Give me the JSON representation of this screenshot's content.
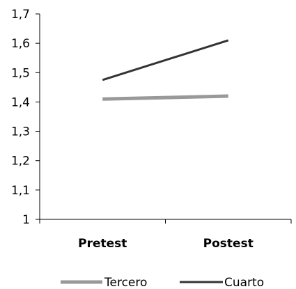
{
  "chart_data": {
    "type": "line",
    "categories": [
      "Pretest",
      "Postest"
    ],
    "series": [
      {
        "name": "Tercero",
        "values": [
          1.41,
          1.42
        ],
        "color": "#999999"
      },
      {
        "name": "Cuarto",
        "values": [
          1.475,
          1.61
        ],
        "color": "#333333"
      }
    ],
    "ylim": [
      1.0,
      1.7
    ],
    "y_ticks": [
      "1",
      "1,1",
      "1,2",
      "1,3",
      "1,4",
      "1,5",
      "1,6",
      "1,7"
    ],
    "y_tick_values": [
      1.0,
      1.1,
      1.2,
      1.3,
      1.4,
      1.5,
      1.6,
      1.7
    ],
    "grid": false,
    "legend_position": "bottom",
    "xlabel": "",
    "ylabel": "",
    "title": ""
  }
}
